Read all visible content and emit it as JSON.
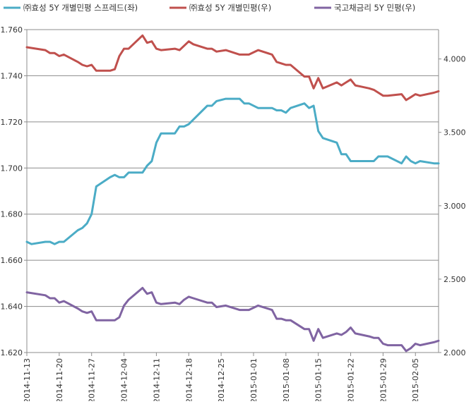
{
  "chart_data": {
    "type": "line",
    "grid": "horizontal",
    "legend_position": "top",
    "x_ticks": [
      "2014-11-13",
      "2014-11-20",
      "2014-11-27",
      "2014-12-04",
      "2014-12-11",
      "2014-12-18",
      "2014-12-25",
      "2015-01-01",
      "2015-01-08",
      "2015-01-15",
      "2015-01-22",
      "2015-01-29",
      "2015-02-05"
    ],
    "x_start": "2014-11-13",
    "x_end": "2015-02-10",
    "ylim_left": [
      1.62,
      1.76
    ],
    "ylim_right": [
      2.0,
      4.2
    ],
    "yticks_left": [
      "1.620",
      "1.640",
      "1.660",
      "1.680",
      "1.700",
      "1.720",
      "1.740",
      "1.760"
    ],
    "yticks_right": [
      "2.000",
      "2.500",
      "3.000",
      "3.500",
      "4.000"
    ],
    "series": [
      {
        "name": "㈜효성 5Y 개별민평 스프레드(좌)",
        "axis": "left",
        "color": "#4bacc6",
        "points": [
          [
            "2014-11-13",
            1.668
          ],
          [
            "2014-11-14",
            1.667
          ],
          [
            "2014-11-17",
            1.668
          ],
          [
            "2014-11-18",
            1.668
          ],
          [
            "2014-11-19",
            1.667
          ],
          [
            "2014-11-20",
            1.668
          ],
          [
            "2014-11-21",
            1.668
          ],
          [
            "2014-11-24",
            1.673
          ],
          [
            "2014-11-25",
            1.674
          ],
          [
            "2014-11-26",
            1.676
          ],
          [
            "2014-11-27",
            1.68
          ],
          [
            "2014-11-28",
            1.692
          ],
          [
            "2014-12-01",
            1.696
          ],
          [
            "2014-12-02",
            1.697
          ],
          [
            "2014-12-03",
            1.696
          ],
          [
            "2014-12-04",
            1.696
          ],
          [
            "2014-12-05",
            1.698
          ],
          [
            "2014-12-08",
            1.698
          ],
          [
            "2014-12-09",
            1.701
          ],
          [
            "2014-12-10",
            1.703
          ],
          [
            "2014-12-11",
            1.711
          ],
          [
            "2014-12-12",
            1.715
          ],
          [
            "2014-12-15",
            1.715
          ],
          [
            "2014-12-16",
            1.718
          ],
          [
            "2014-12-17",
            1.718
          ],
          [
            "2014-12-18",
            1.719
          ],
          [
            "2014-12-19",
            1.721
          ],
          [
            "2014-12-22",
            1.727
          ],
          [
            "2014-12-23",
            1.727
          ],
          [
            "2014-12-24",
            1.729
          ],
          [
            "2014-12-26",
            1.73
          ],
          [
            "2014-12-29",
            1.73
          ],
          [
            "2014-12-30",
            1.728
          ],
          [
            "2014-12-31",
            1.728
          ],
          [
            "2015-01-02",
            1.726
          ],
          [
            "2015-01-05",
            1.726
          ],
          [
            "2015-01-06",
            1.725
          ],
          [
            "2015-01-07",
            1.725
          ],
          [
            "2015-01-08",
            1.724
          ],
          [
            "2015-01-09",
            1.726
          ],
          [
            "2015-01-12",
            1.728
          ],
          [
            "2015-01-13",
            1.726
          ],
          [
            "2015-01-14",
            1.727
          ],
          [
            "2015-01-15",
            1.716
          ],
          [
            "2015-01-16",
            1.713
          ],
          [
            "2015-01-19",
            1.711
          ],
          [
            "2015-01-20",
            1.706
          ],
          [
            "2015-01-21",
            1.706
          ],
          [
            "2015-01-22",
            1.703
          ],
          [
            "2015-01-23",
            1.703
          ],
          [
            "2015-01-26",
            1.703
          ],
          [
            "2015-01-27",
            1.703
          ],
          [
            "2015-01-28",
            1.705
          ],
          [
            "2015-01-29",
            1.705
          ],
          [
            "2015-01-30",
            1.705
          ],
          [
            "2015-02-02",
            1.702
          ],
          [
            "2015-02-03",
            1.705
          ],
          [
            "2015-02-04",
            1.703
          ],
          [
            "2015-02-05",
            1.702
          ],
          [
            "2015-02-06",
            1.703
          ],
          [
            "2015-02-09",
            1.702
          ],
          [
            "2015-02-10",
            1.702
          ]
        ]
      },
      {
        "name": "㈜효성 5Y 개별민평(우)",
        "axis": "right",
        "color": "#c0504d",
        "points": [
          [
            "2014-11-13",
            4.08
          ],
          [
            "2014-11-17",
            4.06
          ],
          [
            "2014-11-18",
            4.04
          ],
          [
            "2014-11-19",
            4.04
          ],
          [
            "2014-11-20",
            4.02
          ],
          [
            "2014-11-21",
            4.03
          ],
          [
            "2014-11-24",
            3.98
          ],
          [
            "2014-11-25",
            3.96
          ],
          [
            "2014-11-26",
            3.95
          ],
          [
            "2014-11-27",
            3.96
          ],
          [
            "2014-11-28",
            3.92
          ],
          [
            "2014-12-01",
            3.92
          ],
          [
            "2014-12-02",
            3.93
          ],
          [
            "2014-12-03",
            4.02
          ],
          [
            "2014-12-04",
            4.07
          ],
          [
            "2014-12-05",
            4.07
          ],
          [
            "2014-12-08",
            4.16
          ],
          [
            "2014-12-09",
            4.11
          ],
          [
            "2014-12-10",
            4.12
          ],
          [
            "2014-12-11",
            4.07
          ],
          [
            "2014-12-12",
            4.06
          ],
          [
            "2014-12-15",
            4.07
          ],
          [
            "2014-12-16",
            4.06
          ],
          [
            "2014-12-17",
            4.09
          ],
          [
            "2014-12-18",
            4.12
          ],
          [
            "2014-12-19",
            4.1
          ],
          [
            "2014-12-22",
            4.07
          ],
          [
            "2014-12-23",
            4.07
          ],
          [
            "2014-12-24",
            4.05
          ],
          [
            "2014-12-26",
            4.06
          ],
          [
            "2014-12-29",
            4.03
          ],
          [
            "2014-12-30",
            4.03
          ],
          [
            "2014-12-31",
            4.03
          ],
          [
            "2015-01-02",
            4.06
          ],
          [
            "2015-01-05",
            4.03
          ],
          [
            "2015-01-06",
            3.98
          ],
          [
            "2015-01-07",
            3.97
          ],
          [
            "2015-01-08",
            3.96
          ],
          [
            "2015-01-09",
            3.96
          ],
          [
            "2015-01-12",
            3.88
          ],
          [
            "2015-01-13",
            3.88
          ],
          [
            "2015-01-14",
            3.8
          ],
          [
            "2015-01-15",
            3.87
          ],
          [
            "2015-01-16",
            3.8
          ],
          [
            "2015-01-19",
            3.84
          ],
          [
            "2015-01-20",
            3.82
          ],
          [
            "2015-01-21",
            3.84
          ],
          [
            "2015-01-22",
            3.86
          ],
          [
            "2015-01-23",
            3.82
          ],
          [
            "2015-01-26",
            3.8
          ],
          [
            "2015-01-27",
            3.79
          ],
          [
            "2015-01-28",
            3.77
          ],
          [
            "2015-01-29",
            3.75
          ],
          [
            "2015-01-30",
            3.75
          ],
          [
            "2015-02-02",
            3.76
          ],
          [
            "2015-02-03",
            3.72
          ],
          [
            "2015-02-04",
            3.74
          ],
          [
            "2015-02-05",
            3.76
          ],
          [
            "2015-02-06",
            3.75
          ],
          [
            "2015-02-09",
            3.77
          ],
          [
            "2015-02-10",
            3.78
          ]
        ]
      },
      {
        "name": "국고채금리 5Y 민평(우)",
        "axis": "right",
        "color": "#8064a2",
        "points": [
          [
            "2014-11-13",
            2.41
          ],
          [
            "2014-11-17",
            2.39
          ],
          [
            "2014-11-18",
            2.37
          ],
          [
            "2014-11-19",
            2.37
          ],
          [
            "2014-11-20",
            2.34
          ],
          [
            "2014-11-21",
            2.35
          ],
          [
            "2014-11-24",
            2.3
          ],
          [
            "2014-11-25",
            2.28
          ],
          [
            "2014-11-26",
            2.27
          ],
          [
            "2014-11-27",
            2.28
          ],
          [
            "2014-11-28",
            2.22
          ],
          [
            "2014-12-01",
            2.22
          ],
          [
            "2014-12-02",
            2.22
          ],
          [
            "2014-12-03",
            2.24
          ],
          [
            "2014-12-04",
            2.32
          ],
          [
            "2014-12-05",
            2.36
          ],
          [
            "2014-12-08",
            2.44
          ],
          [
            "2014-12-09",
            2.4
          ],
          [
            "2014-12-10",
            2.41
          ],
          [
            "2014-12-11",
            2.34
          ],
          [
            "2014-12-12",
            2.33
          ],
          [
            "2014-12-15",
            2.34
          ],
          [
            "2014-12-16",
            2.33
          ],
          [
            "2014-12-17",
            2.36
          ],
          [
            "2014-12-18",
            2.38
          ],
          [
            "2014-12-19",
            2.37
          ],
          [
            "2014-12-22",
            2.34
          ],
          [
            "2014-12-23",
            2.34
          ],
          [
            "2014-12-24",
            2.31
          ],
          [
            "2014-12-26",
            2.32
          ],
          [
            "2014-12-29",
            2.29
          ],
          [
            "2014-12-30",
            2.29
          ],
          [
            "2014-12-31",
            2.29
          ],
          [
            "2015-01-02",
            2.32
          ],
          [
            "2015-01-05",
            2.29
          ],
          [
            "2015-01-06",
            2.23
          ],
          [
            "2015-01-07",
            2.23
          ],
          [
            "2015-01-08",
            2.22
          ],
          [
            "2015-01-09",
            2.22
          ],
          [
            "2015-01-12",
            2.16
          ],
          [
            "2015-01-13",
            2.16
          ],
          [
            "2015-01-14",
            2.08
          ],
          [
            "2015-01-15",
            2.16
          ],
          [
            "2015-01-16",
            2.1
          ],
          [
            "2015-01-19",
            2.13
          ],
          [
            "2015-01-20",
            2.12
          ],
          [
            "2015-01-21",
            2.14
          ],
          [
            "2015-01-22",
            2.17
          ],
          [
            "2015-01-23",
            2.13
          ],
          [
            "2015-01-26",
            2.11
          ],
          [
            "2015-01-27",
            2.1
          ],
          [
            "2015-01-28",
            2.1
          ],
          [
            "2015-01-29",
            2.06
          ],
          [
            "2015-01-30",
            2.05
          ],
          [
            "2015-02-02",
            2.05
          ],
          [
            "2015-02-03",
            2.01
          ],
          [
            "2015-02-04",
            2.03
          ],
          [
            "2015-02-05",
            2.06
          ],
          [
            "2015-02-06",
            2.05
          ],
          [
            "2015-02-09",
            2.07
          ],
          [
            "2015-02-10",
            2.08
          ]
        ]
      }
    ]
  }
}
